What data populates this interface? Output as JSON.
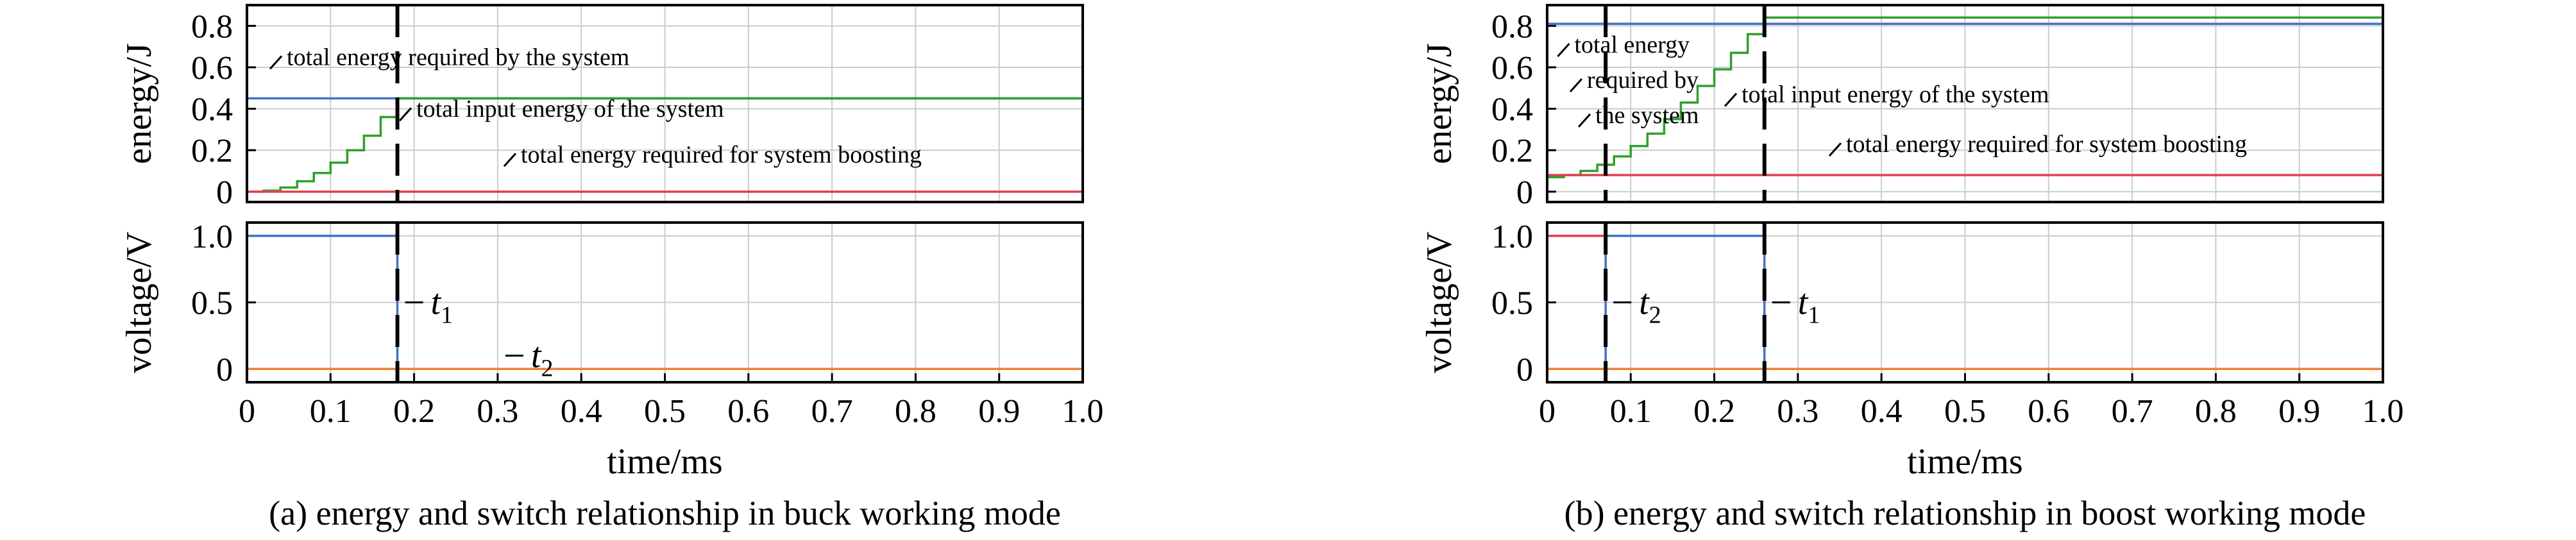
{
  "colors": {
    "blue": "#4472C4",
    "green": "#2EA02E",
    "red": "#E0404A",
    "orange": "#F08030",
    "grid": "#cccccc",
    "axis": "#000000"
  },
  "chart_data": [
    {
      "type": "line",
      "caption": "(a) energy and switch relationship in buck working mode",
      "xlabel": "time/ms",
      "xlim": [
        0,
        1.0
      ],
      "xticks": [
        "0",
        "0.1",
        "0.2",
        "0.3",
        "0.4",
        "0.5",
        "0.6",
        "0.7",
        "0.8",
        "0.9",
        "1.0"
      ],
      "top": {
        "ylabel": "energy/J",
        "ylim": [
          -0.05,
          0.9
        ],
        "yticks": [
          "0",
          "0.2",
          "0.4",
          "0.6",
          "0.8"
        ],
        "series": [
          {
            "color": "blue",
            "x": [
              0,
              1.0
            ],
            "y": [
              0.45,
              0.45
            ]
          },
          {
            "color": "green",
            "x": [
              0,
              0.02,
              0.04,
              0.06,
              0.08,
              0.1,
              0.12,
              0.14,
              0.16,
              0.18,
              1.0
            ],
            "y": [
              0,
              0.005,
              0.02,
              0.05,
              0.09,
              0.14,
              0.2,
              0.27,
              0.36,
              0.45,
              0.45
            ],
            "step": true
          },
          {
            "color": "red",
            "x": [
              0,
              1.0
            ],
            "y": [
              0,
              0
            ]
          }
        ],
        "annotations": [
          {
            "text": "total energy required by the system",
            "x": 0.02,
            "y": 0.58
          },
          {
            "text": "total input energy of the system",
            "x": 0.175,
            "y": 0.33
          },
          {
            "text": "total energy required for system boosting",
            "x": 0.3,
            "y": 0.11
          }
        ],
        "vlines": [
          0.18
        ]
      },
      "bottom": {
        "ylabel": "voltage/V",
        "ylim": [
          -0.1,
          1.1
        ],
        "yticks": [
          "0",
          "0.5",
          "1.0"
        ],
        "series": [
          {
            "color": "blue",
            "x": [
              0,
              0.18,
              0.18
            ],
            "y": [
              1.0,
              1.0,
              0
            ]
          },
          {
            "color": "orange",
            "x": [
              0,
              1.0
            ],
            "y": [
              0,
              0
            ]
          }
        ],
        "vlines": [
          0.18
        ],
        "markers": [
          {
            "label": "t",
            "sub": "1",
            "x": 0.18,
            "y": 0.5
          },
          {
            "label": "t",
            "sub": "2",
            "x": 0.3,
            "y": 0.1
          }
        ]
      }
    },
    {
      "type": "line",
      "caption": "(b) energy and switch relationship in boost working mode",
      "xlabel": "time/ms",
      "xlim": [
        0,
        1.0
      ],
      "xticks": [
        "0",
        "0.1",
        "0.2",
        "0.3",
        "0.4",
        "0.5",
        "0.6",
        "0.7",
        "0.8",
        "0.9",
        "1.0"
      ],
      "top": {
        "ylabel": "energy/J",
        "ylim": [
          -0.05,
          0.9
        ],
        "yticks": [
          "0",
          "0.2",
          "0.4",
          "0.6",
          "0.8"
        ],
        "series": [
          {
            "color": "blue",
            "x": [
              0,
              1.0
            ],
            "y": [
              0.81,
              0.81
            ]
          },
          {
            "color": "green",
            "x": [
              0,
              0.02,
              0.04,
              0.06,
              0.08,
              0.1,
              0.12,
              0.14,
              0.16,
              0.18,
              0.2,
              0.22,
              0.24,
              0.26,
              1.0
            ],
            "y": [
              0.07,
              0.08,
              0.1,
              0.13,
              0.17,
              0.22,
              0.28,
              0.35,
              0.43,
              0.51,
              0.59,
              0.67,
              0.76,
              0.84,
              0.84
            ],
            "step": true
          },
          {
            "color": "red",
            "x": [
              0,
              1.0
            ],
            "y": [
              0.08,
              0.08
            ]
          }
        ],
        "annotations": [
          {
            "text": "total energy",
            "x": 0.005,
            "y": 0.64
          },
          {
            "text": "required by",
            "x": 0.02,
            "y": 0.47
          },
          {
            "text": "the system",
            "x": 0.03,
            "y": 0.3
          },
          {
            "text": "total input energy of the system",
            "x": 0.205,
            "y": 0.4
          },
          {
            "text": "total energy required for system boosting",
            "x": 0.33,
            "y": 0.16
          }
        ],
        "vlines": [
          0.07,
          0.26
        ]
      },
      "bottom": {
        "ylabel": "voltage/V",
        "ylim": [
          -0.1,
          1.1
        ],
        "yticks": [
          "0",
          "0.5",
          "1.0"
        ],
        "series": [
          {
            "color": "red",
            "x": [
              0,
              0.07,
              0.07
            ],
            "y": [
              1.0,
              1.0,
              0
            ]
          },
          {
            "color": "blue",
            "x": [
              0.07,
              0.07,
              0.26,
              0.26
            ],
            "y": [
              0,
              1.0,
              1.0,
              0
            ]
          },
          {
            "color": "orange",
            "x": [
              0,
              1.0
            ],
            "y": [
              0,
              0
            ]
          }
        ],
        "vlines": [
          0.07,
          0.26
        ],
        "markers": [
          {
            "label": "t",
            "sub": "2",
            "x": 0.07,
            "y": 0.5
          },
          {
            "label": "t",
            "sub": "1",
            "x": 0.26,
            "y": 0.5
          }
        ]
      }
    }
  ]
}
